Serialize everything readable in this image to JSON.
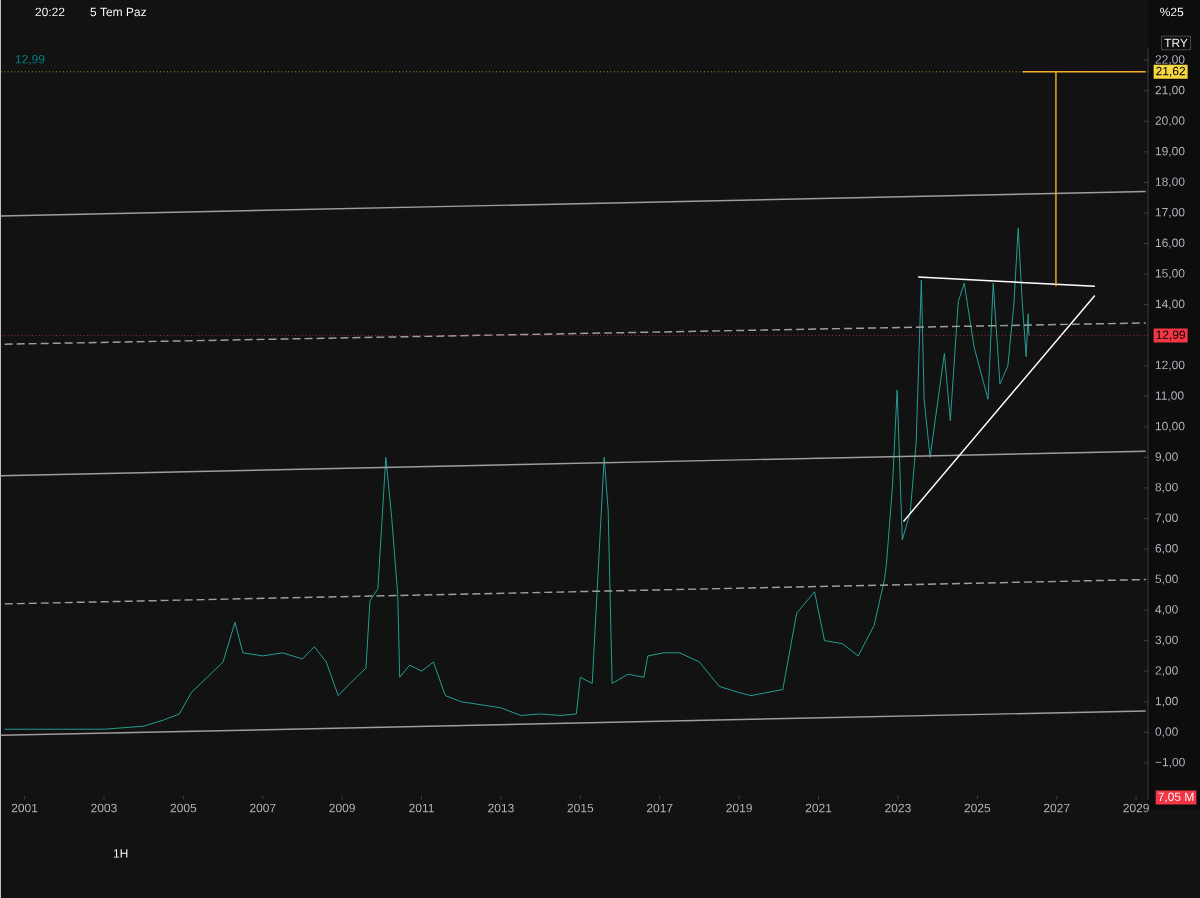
{
  "chart_data": {
    "type": "line",
    "xlim": [
      2000.4,
      2029.3
    ],
    "ylim": [
      -2.2,
      22.4
    ],
    "xticks": [
      2001,
      2003,
      2005,
      2007,
      2009,
      2011,
      2013,
      2015,
      2017,
      2019,
      2021,
      2023,
      2025,
      2027,
      2029
    ],
    "yticks": [
      {
        "value": -1,
        "label": "−1,00"
      },
      {
        "value": 0,
        "label": "0,00"
      },
      {
        "value": 1,
        "label": "1,00"
      },
      {
        "value": 2,
        "label": "2,00"
      },
      {
        "value": 3,
        "label": "3,00"
      },
      {
        "value": 4,
        "label": "4,00"
      },
      {
        "value": 5,
        "label": "5,00"
      },
      {
        "value": 6,
        "label": "6,00"
      },
      {
        "value": 7,
        "label": "7,00"
      },
      {
        "value": 8,
        "label": "8,00"
      },
      {
        "value": 9,
        "label": "9,00"
      },
      {
        "value": 10,
        "label": "10,00"
      },
      {
        "value": 11,
        "label": "11,00"
      },
      {
        "value": 12,
        "label": "12,00"
      },
      {
        "value": 14,
        "label": "14,00"
      },
      {
        "value": 15,
        "label": "15,00"
      },
      {
        "value": 16,
        "label": "16,00"
      },
      {
        "value": 17,
        "label": "17,00"
      },
      {
        "value": 18,
        "label": "18,00"
      },
      {
        "value": 19,
        "label": "19,00"
      },
      {
        "value": 20,
        "label": "20,00"
      },
      {
        "value": 21,
        "label": "21,00"
      },
      {
        "value": 22,
        "label": "22,00"
      }
    ],
    "series": [
      {
        "color": "#26a69a",
        "x": [
          2000.5,
          2002,
          2003,
          2004,
          2004.5,
          2004.9,
          2005.2,
          2005.6,
          2006.0,
          2006.3,
          2006.5,
          2007,
          2007.5,
          2008,
          2008.3,
          2008.6,
          2008.9,
          2009.2,
          2009.6,
          2009.7,
          2009.9,
          2010.1,
          2010.25,
          2010.4,
          2010.45,
          2010.7,
          2011,
          2011.3,
          2011.6,
          2012,
          2012.5,
          2013,
          2013.5,
          2014,
          2014.5,
          2014.9,
          2015.0,
          2015.3,
          2015.6,
          2015.7,
          2015.8,
          2016.2,
          2016.6,
          2016.7,
          2017.1,
          2017.5,
          2018,
          2018.5,
          2019.0,
          2019.3,
          2019.7,
          2020.1,
          2020.45,
          2020.9,
          2021.15,
          2021.6,
          2022.0,
          2022.4,
          2022.66,
          2022.71,
          2022.86,
          2022.98,
          2023.11,
          2023.31,
          2023.46,
          2023.59,
          2023.66,
          2023.81,
          2024.17,
          2024.32,
          2024.52,
          2024.67,
          2024.92,
          2025.27,
          2025.4,
          2025.57,
          2025.77,
          2025.92,
          2026.03,
          2026.13,
          2026.23,
          2026.28,
          2026.3
        ],
        "values": [
          0.1,
          0.1,
          0.1,
          0.2,
          0.4,
          0.6,
          1.3,
          1.8,
          2.3,
          3.6,
          2.6,
          2.5,
          2.6,
          2.4,
          2.8,
          2.3,
          1.2,
          1.6,
          2.1,
          4.3,
          4.7,
          9.0,
          7.0,
          4.5,
          1.8,
          2.2,
          2.0,
          2.3,
          1.2,
          1.0,
          0.9,
          0.8,
          0.55,
          0.6,
          0.55,
          0.6,
          1.8,
          1.6,
          9.0,
          7.3,
          1.6,
          1.9,
          1.8,
          2.5,
          2.6,
          2.6,
          2.3,
          1.5,
          1.3,
          1.2,
          1.3,
          1.4,
          3.9,
          4.6,
          3.0,
          2.9,
          2.5,
          3.5,
          5.0,
          5.5,
          8.0,
          11.2,
          6.3,
          7.2,
          9.5,
          14.8,
          10.9,
          9.0,
          12.4,
          10.2,
          14.1,
          14.7,
          12.6,
          10.9,
          14.7,
          11.4,
          12.0,
          14.0,
          16.5,
          14.1,
          12.3,
          13.7,
          12.99
        ]
      },
      {
        "color": "#9e9e9e",
        "x": [
          2000.4,
          2029.24
        ],
        "values": [
          16.9,
          17.7
        ]
      },
      {
        "color": "#9e9e9e",
        "x": [
          2000.4,
          2029.24
        ],
        "values": [
          8.4,
          9.2
        ]
      },
      {
        "color": "#9e9e9e",
        "x": [
          2000.4,
          2029.24
        ],
        "values": [
          -0.1,
          0.7
        ]
      },
      {
        "color": "#9e9e9e",
        "line_style": "dashed",
        "x": [
          2000.4,
          2029.24
        ],
        "values": [
          4.2,
          5.0
        ]
      },
      {
        "color": "#9e9e9e",
        "line_style": "dashed",
        "x": [
          2000.4,
          2029.24
        ],
        "values": [
          12.7,
          13.4
        ]
      },
      {
        "color": "#ffffff",
        "x": [
          2023.51,
          2027.96
        ],
        "values": [
          14.9,
          14.6
        ]
      },
      {
        "color": "#ffffff",
        "x": [
          2023.14,
          2027.96
        ],
        "values": [
          6.9,
          14.3
        ]
      },
      {
        "color": "#f5a623",
        "x": [
          2026.98,
          2026.98
        ],
        "values": [
          14.6,
          21.62
        ]
      },
      {
        "color": "#f5a623",
        "x": [
          2026.14,
          2029.24
        ],
        "values": [
          21.62,
          21.62
        ]
      }
    ],
    "ref_lines": [
      {
        "axis": "y",
        "value": 21.62,
        "label": "21,62",
        "color": "#f5d742",
        "line_style": "dotted"
      },
      {
        "axis": "y",
        "value": 12.99,
        "label": "12,99",
        "color": "#f23645",
        "line_style": "dotted"
      }
    ],
    "annotations": [
      "20:22",
      "5 Tem Paz",
      "%25",
      "12,99",
      "TRY",
      "7,05 M",
      "1H"
    ]
  }
}
